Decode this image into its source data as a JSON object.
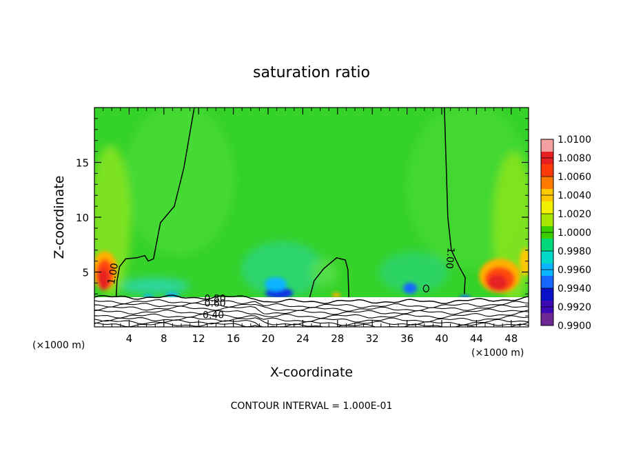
{
  "chart_data": {
    "type": "heatmap",
    "title": "saturation ratio",
    "xlabel": "X-coordinate",
    "ylabel": "Z-coordinate",
    "x_unit_left": "(×1000 m)",
    "x_unit_right": "(×1000 m)",
    "xlim": [
      0,
      50
    ],
    "ylim": [
      0,
      20
    ],
    "x_ticks": [
      4,
      8,
      12,
      16,
      20,
      24,
      28,
      32,
      36,
      40,
      44,
      48
    ],
    "x_tick_labels": [
      "4",
      "8",
      "12",
      "16",
      "20",
      "24",
      "28",
      "32",
      "36",
      "40",
      "44",
      "48"
    ],
    "y_ticks": [
      5,
      10,
      15
    ],
    "y_tick_labels": [
      "5",
      "10",
      "15"
    ],
    "footer": "CONTOUR INTERVAL = 1.000E-01",
    "colorbar": {
      "min": 0.99,
      "max": 1.01,
      "labels": [
        "1.0100",
        "1.0080",
        "1.0060",
        "1.0040",
        "1.0020",
        "1.0000",
        "0.9980",
        "0.9960",
        "0.9940",
        "0.9920",
        "0.9900"
      ],
      "colors": [
        "#f4a0a0",
        "#e62020",
        "#ff3a0a",
        "#ff7a00",
        "#ffc800",
        "#f0f000",
        "#a8e600",
        "#3ccf00",
        "#00d97a",
        "#00d9c8",
        "#0ab4ff",
        "#1466ff",
        "#0a10c8",
        "#3c0ab4",
        "#6e2896"
      ]
    },
    "contour_labels": [
      {
        "text": "1.00",
        "x": 2.5,
        "z": 4.8
      },
      {
        "text": "1.00",
        "x": 40.6,
        "z": 6.3
      },
      {
        "text": "0.80",
        "x": 13.9,
        "z": 2.3
      },
      {
        "text": "0.60",
        "x": 13.9,
        "z": 1.85
      },
      {
        "text": "0.40",
        "x": 13.7,
        "z": 0.8
      }
    ],
    "contour_1_00": [
      [
        [
          11.5,
          20
        ],
        [
          10.3,
          14.5
        ],
        [
          9.2,
          11
        ],
        [
          7.6,
          9.5
        ],
        [
          6.8,
          6.2
        ],
        [
          6.2,
          6.0
        ],
        [
          5.8,
          6.5
        ],
        [
          4.9,
          6.3
        ],
        [
          3.6,
          6.2
        ],
        [
          2.9,
          5.5
        ],
        [
          2.6,
          4.2
        ],
        [
          2.5,
          2.7
        ]
      ],
      [
        [
          40.3,
          20
        ],
        [
          40.5,
          15
        ],
        [
          40.7,
          10
        ],
        [
          41.1,
          7
        ],
        [
          42.0,
          5.5
        ],
        [
          42.7,
          4.5
        ],
        [
          42.6,
          3.0
        ]
      ],
      [
        [
          24.8,
          2.7
        ],
        [
          25.3,
          4.2
        ],
        [
          26.4,
          5.3
        ],
        [
          27.9,
          6.3
        ],
        [
          28.9,
          6.1
        ],
        [
          29.2,
          5.2
        ],
        [
          29.3,
          2.7
        ]
      ]
    ],
    "surface_levels_z": [
      2.7,
      2.3,
      2.0,
      1.7,
      1.35,
      1.0,
      0.7,
      0.45,
      0.2
    ]
  }
}
